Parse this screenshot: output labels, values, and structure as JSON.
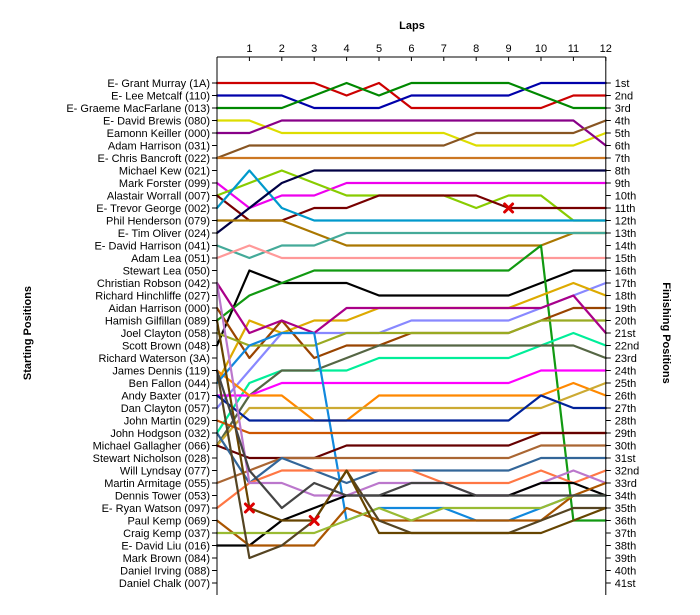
{
  "chart_data": {
    "type": "line",
    "title": "",
    "xlabel": "Laps",
    "ylabel_left": "Starting Positions",
    "ylabel_right": "Finishing Positions",
    "x": [
      0,
      1,
      2,
      3,
      4,
      5,
      6,
      7,
      8,
      9,
      10,
      11,
      12
    ],
    "x_tick_labels": [
      "1",
      "2",
      "3",
      "4",
      "5",
      "6",
      "7",
      "8",
      "9",
      "10",
      "11",
      "12"
    ],
    "ylim": [
      1,
      41
    ],
    "y_inverted": true,
    "grid": false,
    "starting_labels": [
      "E- Grant Murray (1A)",
      "E- Lee Metcalf (110)",
      "E- Graeme MacFarlane (013)",
      "E- David Brewis (080)",
      "Eamonn Keiller (000)",
      "Adam Harrison (031)",
      "E- Chris Bancroft (022)",
      "Michael Kew (021)",
      "Mark Forster (099)",
      "Alastair Worrall (007)",
      "E- Trevor George (002)",
      "Phil Henderson (079)",
      "E- Tim Oliver (024)",
      "E- David Harrison (041)",
      "Adam Lea (051)",
      "Stewart Lea (050)",
      "Christian Robson (042)",
      "Richard Hinchliffe (027)",
      "Aidan Harrison (000)",
      "Hamish Gilfillan (089)",
      "Joel Clayton (058)",
      "Scott Brown (048)",
      "Richard Waterson (3A)",
      "James Dennis (119)",
      "Ben Fallon (044)",
      "Andy Baxter (017)",
      "Dan Clayton (057)",
      "John Martin (029)",
      "John Hodgson (032)",
      "Michael Gallagher (066)",
      "Stewart Nicholson (028)",
      "Will Lyndsay (077)",
      "Martin Armitage (055)",
      "Dennis Tower (053)",
      "E- Ryan Watson (097)",
      "Paul Kemp (069)",
      "Craig Kemp (037)",
      "E- David Liu (016)",
      "Mark Brown (084)",
      "Daniel Irving (088)",
      "Daniel Chalk (007)"
    ],
    "finishing_labels": [
      "1st",
      "2nd",
      "3rd",
      "4th",
      "5th",
      "6th",
      "7th",
      "8th",
      "9th",
      "10th",
      "11th",
      "12th",
      "13th",
      "14th",
      "15th",
      "16th",
      "17th",
      "18th",
      "19th",
      "20th",
      "21st",
      "22nd",
      "23rd",
      "24th",
      "25th",
      "26th",
      "27th",
      "28th",
      "29th",
      "30th",
      "31st",
      "32nd",
      "33rd",
      "34th",
      "35th",
      "36th",
      "37th",
      "38th",
      "39th",
      "40th",
      "41st"
    ],
    "series": [
      {
        "color": "#cc0000",
        "values": [
          1,
          1,
          1,
          1,
          2,
          1,
          3,
          3,
          3,
          3,
          3,
          2,
          2
        ]
      },
      {
        "color": "#0000aa",
        "values": [
          2,
          2,
          2,
          3,
          3,
          3,
          2,
          2,
          2,
          2,
          1,
          1,
          1
        ]
      },
      {
        "color": "#008800",
        "values": [
          3,
          3,
          3,
          2,
          1,
          2,
          1,
          1,
          1,
          1,
          2,
          3,
          3
        ]
      },
      {
        "color": "#dddd00",
        "values": [
          4,
          4,
          5,
          5,
          5,
          5,
          5,
          5,
          6,
          6,
          6,
          6,
          5
        ]
      },
      {
        "color": "#880088",
        "values": [
          5,
          5,
          4,
          4,
          4,
          4,
          4,
          4,
          4,
          4,
          4,
          4,
          6
        ]
      },
      {
        "color": "#885522",
        "values": [
          7,
          6,
          6,
          6,
          6,
          6,
          6,
          6,
          5,
          5,
          5,
          5,
          4
        ]
      },
      {
        "color": "#cc7722",
        "values": [
          7,
          7,
          7,
          7,
          7,
          7,
          7,
          7,
          7,
          7,
          7,
          7,
          7
        ]
      },
      {
        "color": "#ee00ee",
        "values": [
          9,
          11,
          10,
          10,
          9,
          9,
          9,
          9,
          9,
          9,
          9,
          9,
          9
        ]
      },
      {
        "color": "#88cc00",
        "values": [
          10,
          9,
          8,
          9,
          10,
          10,
          10,
          10,
          11,
          10,
          10,
          12,
          12
        ]
      },
      {
        "color": "#770000",
        "values": [
          10,
          12,
          12,
          11,
          11,
          10,
          10,
          10,
          10,
          11,
          11,
          11,
          11
        ]
      },
      {
        "color": "#0099cc",
        "values": [
          11,
          8,
          11,
          12,
          12,
          12,
          12,
          12,
          12,
          12,
          12,
          12,
          12
        ]
      },
      {
        "color": "#000044",
        "values": [
          13,
          11,
          9,
          8,
          8,
          8,
          8,
          8,
          8,
          8,
          8,
          8,
          8
        ]
      },
      {
        "color": "#aa7700",
        "values": [
          12,
          12,
          12,
          13,
          14,
          14,
          14,
          14,
          14,
          14,
          14,
          13,
          13
        ]
      },
      {
        "color": "#44aa99",
        "values": [
          14,
          15,
          14,
          14,
          13,
          13,
          13,
          13,
          13,
          13,
          13,
          13,
          13
        ]
      },
      {
        "color": "#ff9999",
        "values": [
          15,
          14,
          15,
          15,
          15,
          15,
          15,
          15,
          15,
          15,
          15,
          15,
          15
        ]
      },
      {
        "color": "#000000",
        "values": [
          22,
          16,
          17,
          17,
          17,
          18,
          18,
          18,
          18,
          18,
          17,
          16,
          16
        ]
      },
      {
        "color": "#119911",
        "values": [
          20,
          18,
          17,
          16,
          16,
          16,
          16,
          16,
          16,
          16,
          14,
          36,
          36
        ]
      },
      {
        "color": "#8888ff",
        "values": [
          27,
          24,
          21,
          21,
          21,
          21,
          20,
          20,
          20,
          20,
          19,
          18,
          17
        ]
      },
      {
        "color": "#ddaa00",
        "values": [
          25,
          20,
          21,
          20,
          20,
          19,
          19,
          19,
          19,
          19,
          18,
          17,
          18
        ]
      },
      {
        "color": "#994400",
        "values": [
          19,
          23,
          20,
          23,
          22,
          22,
          21,
          21,
          21,
          21,
          20,
          19,
          19
        ]
      },
      {
        "color": "#99aa22",
        "values": [
          21,
          22,
          22,
          22,
          21,
          21,
          21,
          21,
          21,
          21,
          20,
          20,
          20
        ]
      },
      {
        "color": "#aa0088",
        "values": [
          17,
          21,
          20,
          21,
          19,
          19,
          19,
          19,
          19,
          19,
          19,
          18,
          21
        ]
      },
      {
        "color": "#00ee99",
        "values": [
          29,
          25,
          24,
          24,
          24,
          23,
          23,
          23,
          23,
          23,
          22,
          21,
          22
        ]
      },
      {
        "color": "#556644",
        "values": [
          30,
          26,
          24,
          24,
          23,
          22,
          22,
          22,
          22,
          22,
          22,
          22,
          23
        ]
      },
      {
        "color": "#ff00ff",
        "values": [
          26,
          26,
          25,
          25,
          25,
          25,
          25,
          25,
          25,
          25,
          24,
          24,
          24
        ]
      },
      {
        "color": "#ff8800",
        "values": [
          24,
          26,
          26,
          28,
          28,
          26,
          26,
          26,
          26,
          26,
          26,
          25,
          26
        ]
      },
      {
        "color": "#1188dd",
        "values": [
          25,
          22,
          21,
          21,
          36,
          35,
          35,
          35,
          36,
          36,
          35,
          34,
          34
        ]
      },
      {
        "color": "#ccaa33",
        "values": [
          30,
          27,
          27,
          27,
          27,
          27,
          27,
          27,
          27,
          27,
          27,
          26,
          25
        ]
      },
      {
        "color": "#002299",
        "values": [
          26,
          28,
          28,
          28,
          28,
          28,
          28,
          28,
          28,
          28,
          26,
          27,
          27
        ]
      },
      {
        "color": "#cc5500",
        "values": [
          28,
          29,
          29,
          29,
          29,
          29,
          29,
          29,
          29,
          29,
          29,
          29,
          29
        ]
      },
      {
        "color": "#660000",
        "values": [
          30,
          31,
          31,
          31,
          30,
          30,
          30,
          30,
          30,
          30,
          29,
          29,
          29
        ]
      },
      {
        "color": "#aa6633",
        "values": [
          33,
          32,
          31,
          31,
          31,
          31,
          31,
          31,
          31,
          31,
          30,
          30,
          30
        ]
      },
      {
        "color": "#336699",
        "values": [
          29,
          33,
          31,
          32,
          33,
          32,
          32,
          32,
          32,
          32,
          31,
          31,
          31
        ]
      },
      {
        "color": "#ff7744",
        "values": [
          35,
          33,
          32,
          32,
          32,
          32,
          32,
          33,
          33,
          33,
          32,
          33,
          32
        ]
      },
      {
        "color": "#bb77cc",
        "values": [
          17,
          33,
          33,
          34,
          34,
          33,
          33,
          33,
          34,
          34,
          33,
          32,
          33
        ]
      },
      {
        "color": "#000000",
        "values": [
          38,
          38,
          36,
          35,
          34,
          34,
          34,
          34,
          34,
          34,
          33,
          33,
          34
        ]
      },
      {
        "color": "#aa5500",
        "values": [
          36,
          38,
          38,
          38,
          35,
          36,
          36,
          36,
          36,
          36,
          36,
          34,
          33
        ]
      },
      {
        "color": "#99bb33",
        "values": [
          37,
          37,
          37,
          37,
          36,
          35,
          36,
          35,
          35,
          35,
          35,
          34,
          34
        ]
      },
      {
        "color": "#554422",
        "values": [
          24,
          39,
          38,
          36,
          32,
          36,
          37,
          37,
          37,
          37,
          36,
          35,
          35
        ]
      },
      {
        "color": "#664400",
        "values": [
          20,
          35,
          36,
          36,
          32,
          37,
          37,
          37,
          37,
          37,
          37,
          36,
          35
        ]
      },
      {
        "color": "#444444",
        "values": [
          24,
          32,
          35,
          33,
          34,
          34,
          33,
          33,
          34,
          34,
          34,
          34,
          34
        ]
      }
    ],
    "retirements": [
      {
        "lap": 1,
        "position": 35
      },
      {
        "lap": 3,
        "position": 36
      },
      {
        "lap": 9,
        "position": 11
      }
    ]
  }
}
